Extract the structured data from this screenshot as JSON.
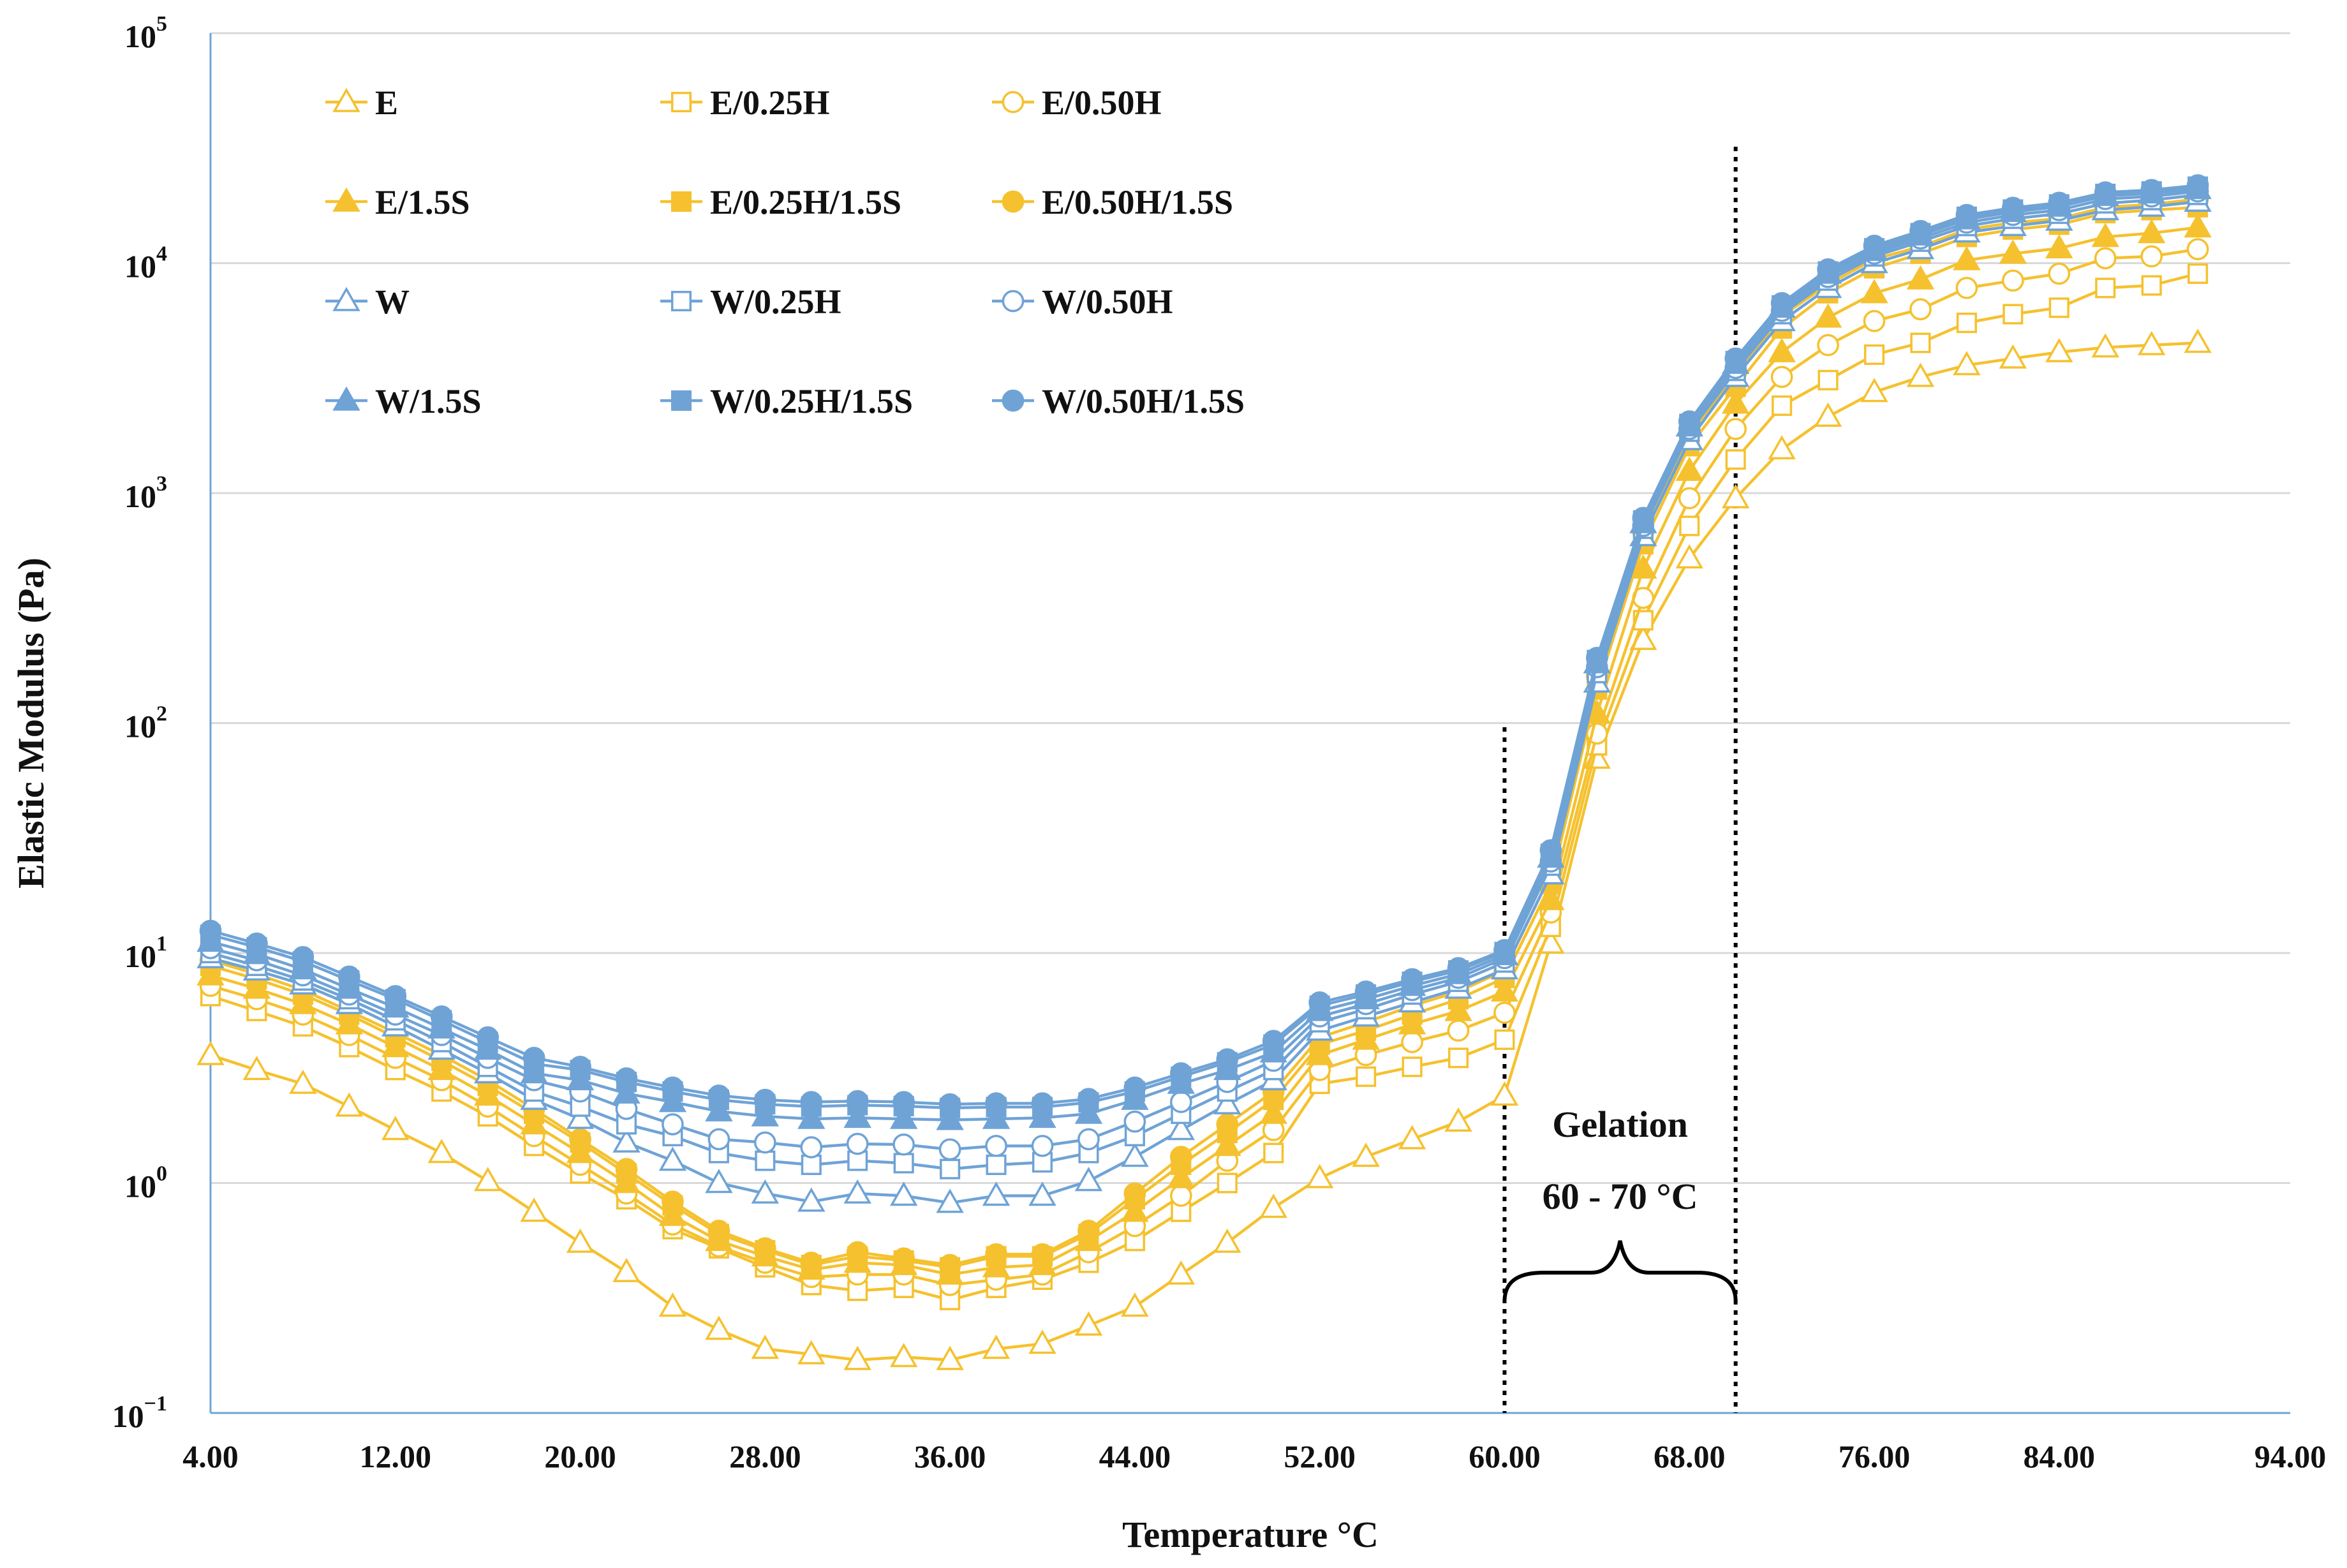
{
  "chart_data": {
    "type": "line",
    "title": "",
    "xlabel": "Temperature °C",
    "ylabel": "Elastic Modulus (Pa)",
    "xlim": [
      4,
      94
    ],
    "ylim": [
      0.1,
      100000
    ],
    "y_scale": "log",
    "x_ticks": [
      "4.00",
      "12.00",
      "20.00",
      "28.00",
      "36.00",
      "44.00",
      "52.00",
      "60.00",
      "68.00",
      "76.00",
      "84.00",
      "94.00"
    ],
    "y_ticks": [
      {
        "base": "10",
        "exp": "5"
      },
      {
        "base": "10",
        "exp": "4"
      },
      {
        "base": "10",
        "exp": "3"
      },
      {
        "base": "10",
        "exp": "2"
      },
      {
        "base": "10",
        "exp": "1"
      },
      {
        "base": "10",
        "exp": "0"
      },
      {
        "base": "10",
        "exp": "−1"
      }
    ],
    "grid": "horizontal",
    "legend_position": "top-left",
    "colors": {
      "E": "#F5C12E",
      "W": "#6FA3D6"
    },
    "annotations": {
      "gelation_label": "Gelation",
      "gelation_range": "60 - 70 °C",
      "dotted_lines_x": [
        60,
        70
      ]
    },
    "x": [
      4,
      6,
      8,
      10,
      12,
      14,
      16,
      18,
      20,
      22,
      24,
      26,
      28,
      30,
      32,
      34,
      36,
      38,
      40,
      42,
      44,
      46,
      48,
      50,
      52,
      54,
      56,
      58,
      60,
      62,
      64,
      66,
      68,
      70,
      72,
      74,
      76,
      78,
      80,
      82,
      84,
      86,
      88,
      90
    ],
    "series": [
      {
        "name": "E",
        "color": "#F5C12E",
        "marker": "triangle",
        "filled": false,
        "values": [
          3.6,
          3.1,
          2.7,
          2.15,
          1.7,
          1.35,
          1.02,
          0.75,
          0.55,
          0.41,
          0.29,
          0.23,
          0.19,
          0.18,
          0.17,
          0.175,
          0.17,
          0.19,
          0.2,
          0.24,
          0.29,
          0.4,
          0.55,
          0.78,
          1.05,
          1.3,
          1.55,
          1.85,
          2.4,
          11,
          70,
          230,
          520,
          950,
          1550,
          2150,
          2750,
          3200,
          3600,
          3850,
          4100,
          4300,
          4400,
          4500
        ]
      },
      {
        "name": "E/0.25H",
        "color": "#F5C12E",
        "marker": "square",
        "filled": false,
        "values": [
          6.5,
          5.6,
          4.8,
          3.9,
          3.1,
          2.5,
          1.95,
          1.45,
          1.1,
          0.85,
          0.63,
          0.52,
          0.43,
          0.36,
          0.34,
          0.35,
          0.31,
          0.35,
          0.38,
          0.45,
          0.56,
          0.75,
          1.0,
          1.35,
          2.7,
          2.9,
          3.2,
          3.5,
          4.2,
          13,
          80,
          280,
          720,
          1400,
          2400,
          3100,
          4000,
          4500,
          5500,
          6000,
          6400,
          7800,
          8000,
          9000
        ]
      },
      {
        "name": "E/0.50H",
        "color": "#F5C12E",
        "marker": "circle",
        "filled": false,
        "values": [
          7.2,
          6.3,
          5.4,
          4.4,
          3.5,
          2.8,
          2.15,
          1.6,
          1.2,
          0.9,
          0.66,
          0.53,
          0.45,
          0.39,
          0.4,
          0.4,
          0.36,
          0.38,
          0.4,
          0.5,
          0.65,
          0.88,
          1.25,
          1.7,
          3.1,
          3.6,
          4.1,
          4.6,
          5.5,
          15,
          90,
          350,
          950,
          1900,
          3200,
          4400,
          5600,
          6300,
          7800,
          8400,
          9000,
          10500,
          10700,
          11500
        ]
      },
      {
        "name": "E/1.5S",
        "color": "#F5C12E",
        "marker": "triangle",
        "filled": true,
        "values": [
          8.0,
          7.0,
          6.0,
          4.9,
          3.9,
          3.1,
          2.4,
          1.8,
          1.35,
          1.0,
          0.72,
          0.56,
          0.48,
          0.42,
          0.45,
          0.44,
          0.4,
          0.43,
          0.44,
          0.56,
          0.75,
          1.05,
          1.45,
          2.0,
          3.6,
          4.2,
          4.9,
          5.6,
          6.8,
          17,
          110,
          470,
          1250,
          2450,
          4100,
          5800,
          7400,
          8500,
          10300,
          11000,
          11600,
          13000,
          13500,
          14300
        ]
      },
      {
        "name": "E/0.25H/1.5S",
        "color": "#F5C12E",
        "marker": "square",
        "filled": true,
        "values": [
          8.8,
          7.7,
          6.6,
          5.4,
          4.3,
          3.4,
          2.65,
          2.0,
          1.5,
          1.1,
          0.8,
          0.6,
          0.51,
          0.44,
          0.48,
          0.46,
          0.43,
          0.48,
          0.48,
          0.6,
          0.85,
          1.2,
          1.65,
          2.3,
          4.0,
          4.6,
          5.4,
          6.3,
          7.8,
          20,
          140,
          600,
          1600,
          2900,
          5200,
          7400,
          9500,
          11000,
          13000,
          14000,
          14700,
          16500,
          17000,
          17500
        ]
      },
      {
        "name": "E/0.50H/1.5S",
        "color": "#F5C12E",
        "marker": "circle",
        "filled": true,
        "values": [
          9.3,
          8.1,
          6.9,
          5.6,
          4.5,
          3.6,
          2.8,
          2.1,
          1.55,
          1.15,
          0.83,
          0.62,
          0.52,
          0.45,
          0.5,
          0.47,
          0.44,
          0.49,
          0.49,
          0.62,
          0.9,
          1.3,
          1.8,
          2.5,
          4.3,
          5.0,
          5.9,
          6.8,
          8.4,
          22,
          160,
          680,
          1800,
          3300,
          5900,
          8100,
          10400,
          11800,
          14000,
          15000,
          15600,
          17500,
          18000,
          19000
        ]
      },
      {
        "name": "W",
        "color": "#6FA3D6",
        "marker": "triangle",
        "filled": false,
        "values": [
          9.5,
          8.4,
          7.3,
          6.0,
          4.8,
          3.8,
          3.0,
          2.3,
          1.9,
          1.5,
          1.25,
          1.0,
          0.9,
          0.83,
          0.9,
          0.88,
          0.82,
          0.88,
          0.88,
          1.02,
          1.3,
          1.7,
          2.2,
          2.8,
          4.6,
          5.3,
          6.1,
          7.0,
          8.5,
          22,
          150,
          650,
          1700,
          3200,
          5600,
          7800,
          10000,
          11500,
          13600,
          14500,
          15300,
          17000,
          17600,
          18500
        ]
      },
      {
        "name": "W/0.25H",
        "color": "#6FA3D6",
        "marker": "square",
        "filled": false,
        "values": [
          10.0,
          8.8,
          7.6,
          6.3,
          5.1,
          4.1,
          3.2,
          2.5,
          2.15,
          1.8,
          1.6,
          1.35,
          1.25,
          1.2,
          1.25,
          1.22,
          1.15,
          1.2,
          1.23,
          1.35,
          1.6,
          2.0,
          2.5,
          3.1,
          5.0,
          5.7,
          6.6,
          7.5,
          9.1,
          24,
          165,
          700,
          1850,
          3400,
          6000,
          8400,
          10700,
          12400,
          14500,
          15600,
          16400,
          18200,
          18800,
          19800
        ]
      },
      {
        "name": "W/0.50H",
        "color": "#6FA3D6",
        "marker": "circle",
        "filled": false,
        "values": [
          10.5,
          9.3,
          8.0,
          6.6,
          5.4,
          4.4,
          3.5,
          2.8,
          2.5,
          2.1,
          1.8,
          1.55,
          1.5,
          1.43,
          1.48,
          1.47,
          1.4,
          1.45,
          1.45,
          1.55,
          1.85,
          2.25,
          2.75,
          3.4,
          5.3,
          6.0,
          6.9,
          7.8,
          9.5,
          25,
          175,
          720,
          1900,
          3500,
          6200,
          8700,
          11000,
          12800,
          15000,
          16200,
          17000,
          19000,
          19500,
          20500
        ]
      },
      {
        "name": "W/1.5S",
        "color": "#6FA3D6",
        "marker": "triangle",
        "filled": true,
        "values": [
          11.2,
          9.9,
          8.5,
          7.0,
          5.8,
          4.7,
          3.8,
          3.0,
          2.8,
          2.45,
          2.25,
          2.05,
          1.95,
          1.9,
          1.92,
          1.9,
          1.88,
          1.9,
          1.92,
          2.0,
          2.3,
          2.7,
          3.1,
          3.7,
          5.6,
          6.3,
          7.2,
          8.1,
          9.8,
          26,
          182,
          740,
          1950,
          3650,
          6400,
          9000,
          11300,
          13200,
          15500,
          16700,
          17600,
          19600,
          20100,
          21000
        ]
      },
      {
        "name": "W/0.25H/1.5S",
        "color": "#6FA3D6",
        "marker": "square",
        "filled": true,
        "values": [
          12.0,
          10.6,
          9.2,
          7.6,
          6.3,
          5.1,
          4.1,
          3.3,
          3.1,
          2.75,
          2.5,
          2.3,
          2.2,
          2.15,
          2.18,
          2.16,
          2.12,
          2.14,
          2.14,
          2.24,
          2.5,
          2.9,
          3.35,
          4.0,
          5.9,
          6.6,
          7.5,
          8.4,
          10.1,
          27,
          188,
          760,
          2000,
          3750,
          6550,
          9200,
          11600,
          13500,
          15900,
          17100,
          18000,
          20000,
          20500,
          21500
        ]
      },
      {
        "name": "W/0.50H/1.5S",
        "color": "#6FA3D6",
        "marker": "circle",
        "filled": true,
        "values": [
          12.5,
          11.0,
          9.6,
          7.9,
          6.5,
          5.3,
          4.3,
          3.5,
          3.2,
          2.85,
          2.6,
          2.4,
          2.3,
          2.25,
          2.27,
          2.25,
          2.2,
          2.22,
          2.22,
          2.32,
          2.6,
          3.0,
          3.45,
          4.15,
          6.1,
          6.8,
          7.7,
          8.6,
          10.3,
          28,
          192,
          780,
          2050,
          3850,
          6700,
          9400,
          11900,
          13800,
          16200,
          17400,
          18300,
          20300,
          20800,
          21800
        ]
      }
    ]
  }
}
